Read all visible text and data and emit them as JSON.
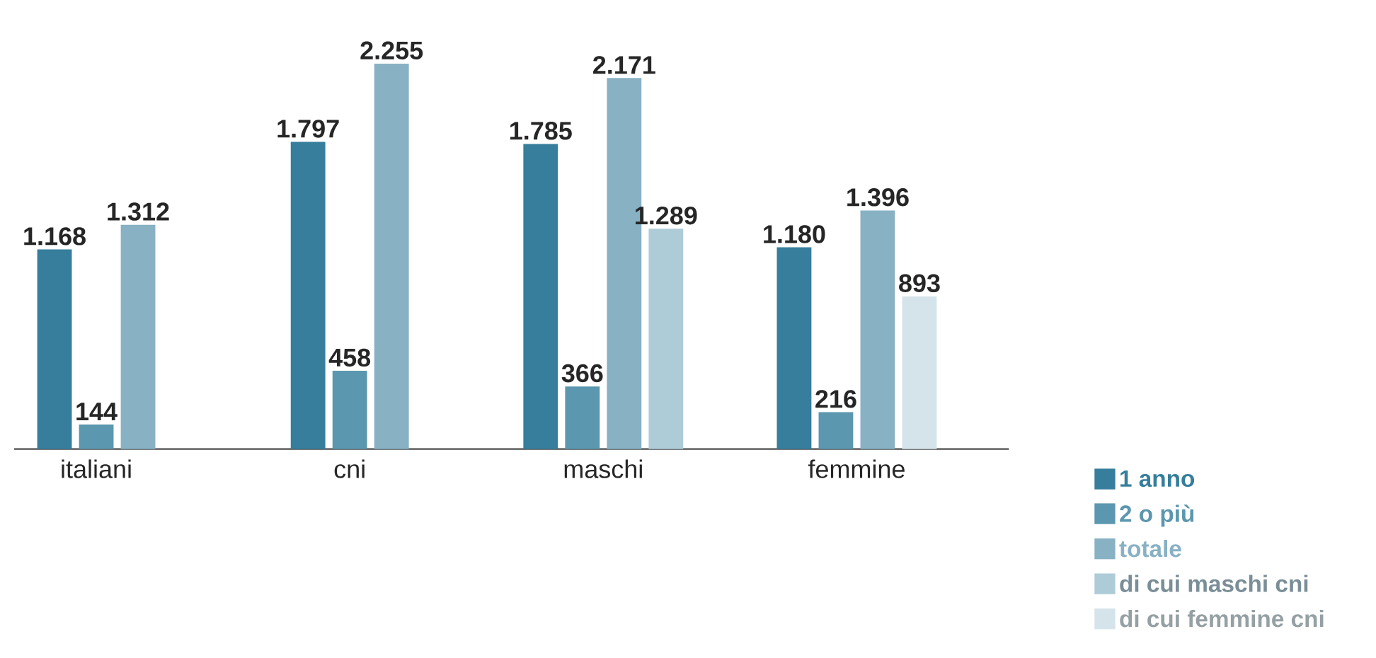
{
  "chart_data": {
    "type": "bar",
    "categories": [
      "italiani",
      "cni",
      "maschi",
      "femmine"
    ],
    "series": [
      {
        "name": "1 anno",
        "color": "#367e9c",
        "values": [
          1168,
          1797,
          1785,
          1180
        ],
        "value_labels": [
          "1.168",
          "1.797",
          "1.785",
          "1.180"
        ]
      },
      {
        "name": "2 o più",
        "color": "#5b97ae",
        "values": [
          144,
          458,
          366,
          216
        ],
        "value_labels": [
          "144",
          "458",
          "366",
          "216"
        ]
      },
      {
        "name": "totale",
        "color": "#88b1c4",
        "values": [
          1312,
          2255,
          2171,
          1396
        ],
        "value_labels": [
          "1.312",
          "2.255",
          "2.171",
          "1.396"
        ]
      },
      {
        "name": "di cui maschi cni",
        "color": "#aecbd8",
        "values": [
          null,
          null,
          1289,
          null
        ],
        "value_labels": [
          null,
          null,
          "1.289",
          null
        ]
      },
      {
        "name": "di cui femmine cni",
        "color": "#d5e4ea",
        "values": [
          null,
          null,
          null,
          893
        ],
        "value_labels": [
          null,
          null,
          null,
          "893"
        ]
      }
    ],
    "legend": "bottom right"
  }
}
